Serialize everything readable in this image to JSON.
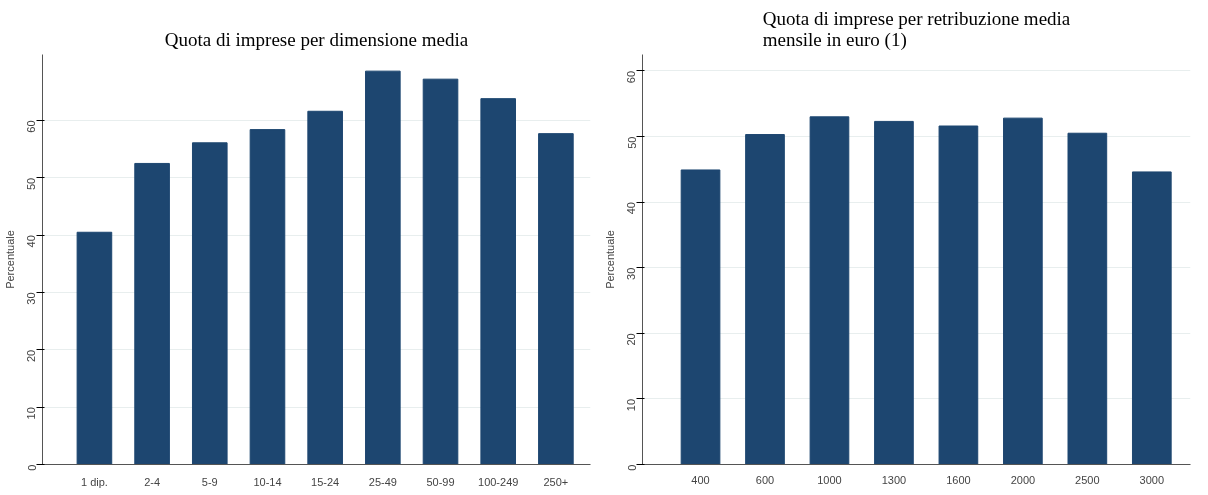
{
  "chart_data": [
    {
      "type": "bar",
      "title": "Quota di imprese per dimensione media",
      "ylabel": "Percentuale",
      "categories": [
        "1 dip.",
        "2-4",
        "5-9",
        "10-14",
        "15-24",
        "25-49",
        "50-99",
        "100-249",
        "250+"
      ],
      "values": [
        40.5,
        52.5,
        56.1,
        58.4,
        61.6,
        68.6,
        67.2,
        63.8,
        57.7
      ],
      "color": "#1d4670",
      "ylim": [
        0,
        71.5
      ],
      "yticks": [
        0,
        10,
        20,
        30,
        40,
        50,
        60
      ],
      "grid": "y",
      "legend": false
    },
    {
      "type": "bar",
      "title": "Quota di imprese per retribuzione media mensile in euro (1)",
      "ylabel": "Percentuale",
      "categories": [
        "400",
        "600",
        "1000",
        "1300",
        "1600",
        "2000",
        "2500",
        "3000"
      ],
      "values": [
        44.9,
        50.3,
        53.0,
        52.3,
        51.6,
        52.8,
        50.5,
        44.6
      ],
      "color": "#1d4670",
      "ylim": [
        0,
        62.5
      ],
      "yticks": [
        0,
        10,
        20,
        30,
        40,
        50,
        60
      ],
      "grid": "y",
      "legend": false
    }
  ]
}
